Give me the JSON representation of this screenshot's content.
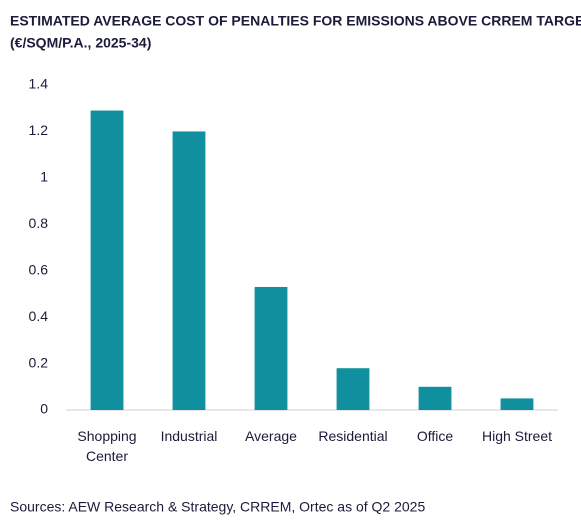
{
  "chart_data": {
    "type": "bar",
    "title": "ESTIMATED AVERAGE COST OF PENALTIES FOR EMISSIONS ABOVE CRREM TARGETS",
    "subtitle": "(€/SQM/P.A., 2025-34)",
    "categories": [
      "Shopping Center",
      "Industrial",
      "Average",
      "Residential",
      "Office",
      "High Street"
    ],
    "values": [
      1.29,
      1.2,
      0.53,
      0.18,
      0.1,
      0.05
    ],
    "color": "#10909e",
    "ylim": [
      0,
      1.4
    ],
    "yticks": [
      0,
      0.2,
      0.4,
      0.6,
      0.8,
      1,
      1.2,
      1.4
    ],
    "grid": false,
    "source": "Sources: AEW Research & Strategy, CRREM, Ortec as of Q2 2025"
  }
}
